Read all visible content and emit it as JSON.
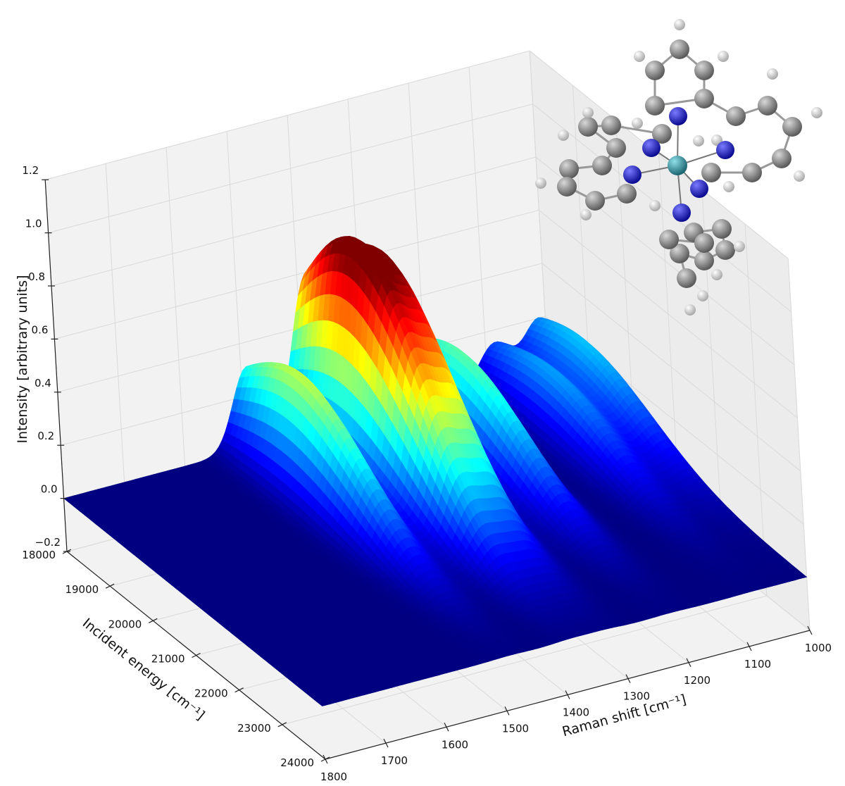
{
  "chart_data": {
    "type": "surface3d",
    "title": "",
    "xlabel": "Raman shift [cm⁻¹]",
    "ylabel": "Incident energy [cm⁻¹]",
    "zlabel": "Intensity [arbitrary units]",
    "xlim": [
      1000,
      1800
    ],
    "ylim": [
      18000,
      24000
    ],
    "zlim": [
      -0.2,
      1.2
    ],
    "xticks": [
      "1000",
      "1100",
      "1200",
      "1300",
      "1400",
      "1500",
      "1600",
      "1700",
      "1800"
    ],
    "yticks": [
      "18000",
      "19000",
      "20000",
      "21000",
      "22000",
      "23000",
      "24000"
    ],
    "zticks": [
      "−0.2",
      "0.0",
      "0.2",
      "0.4",
      "0.6",
      "0.8",
      "1.0",
      "1.2"
    ],
    "colormap": "jet",
    "grid": true,
    "peaks": [
      {
        "raman_shift": 1490,
        "max_intensity": 0.45,
        "resonance_incident_energy": 19300
      },
      {
        "raman_shift": 1390,
        "max_intensity": 0.78,
        "resonance_incident_energy": 19300
      },
      {
        "raman_shift": 1335,
        "max_intensity": 0.7,
        "resonance_incident_energy": 19300
      },
      {
        "raman_shift": 1225,
        "max_intensity": 0.37,
        "resonance_incident_energy": 19300
      },
      {
        "raman_shift": 1085,
        "max_intensity": 0.22,
        "resonance_incident_energy": 19300
      },
      {
        "raman_shift": 1010,
        "max_intensity": 0.25,
        "resonance_incident_energy": 19000
      }
    ],
    "inset": "molecule-structure"
  },
  "colors": {
    "pane": "#f2f2f2",
    "grid": "#dadada",
    "floor": "#00007f",
    "carbon": "#808080",
    "nitrogen": "#1a1ad0",
    "hydrogen": "#eeeeee",
    "metal": "#2a8a9a"
  }
}
